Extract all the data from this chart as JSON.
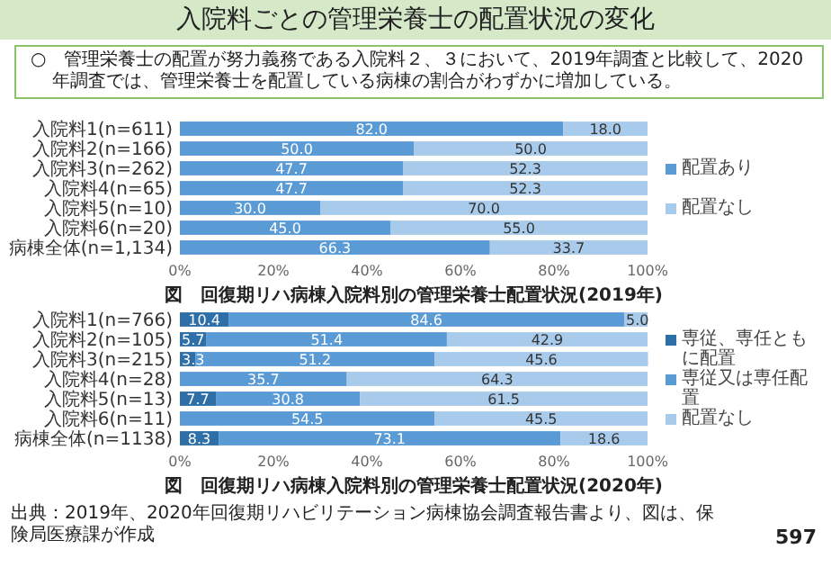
{
  "chart_data": [
    {
      "type": "other",
      "title": "入院料ごとの管理栄養士の配置状況の変化",
      "annotations": [
        "○　管理栄養士の配置が努力義務である入院料２、３において、2019年調査と比較して、2020年調査では、管理栄養士を配置している病棟の割合がわずかに増加している。"
      ]
    },
    {
      "type": "bar",
      "orientation": "horizontal",
      "stacked": true,
      "title": "図　回復期リハ病棟入院料別の管理栄養士配置状況(2019年)",
      "categories": [
        "入院料1(n=611)",
        "入院料2(n=166)",
        "入院料3(n=262)",
        "入院料4(n=65)",
        "入院料5(n=10)",
        "入院料6(n=20)",
        "病棟全体(n=1,134)"
      ],
      "series": [
        {
          "name": "配置あり",
          "color": "#5b9bd5",
          "values": [
            82.0,
            50.0,
            47.7,
            47.7,
            30.0,
            45.0,
            66.3
          ],
          "value_labels": [
            "82.0",
            "50.0",
            "47.7",
            "47.7",
            "30.0",
            "45.0",
            "66.3"
          ]
        },
        {
          "name": "配置なし",
          "color": "#a9cbeb",
          "values": [
            18.0,
            50.0,
            52.3,
            52.3,
            70.0,
            55.0,
            33.7
          ],
          "value_labels": [
            "18.0",
            "50.0",
            "52.3",
            "52.3",
            "70.0",
            "55.0",
            "33.7"
          ]
        }
      ],
      "xlim": [
        0,
        100
      ],
      "xticks": [
        {
          "value": 0,
          "label": "0%"
        },
        {
          "value": 20,
          "label": "20%"
        },
        {
          "value": 40,
          "label": "40%"
        },
        {
          "value": 60,
          "label": "60%"
        },
        {
          "value": 80,
          "label": "80%"
        },
        {
          "value": 100,
          "label": "100%"
        }
      ],
      "legend": "right"
    },
    {
      "type": "bar",
      "orientation": "horizontal",
      "stacked": true,
      "title": "図　回復期リハ病棟入院料別の管理栄養士配置状況(2020年)",
      "categories": [
        "入院料1(n=766)",
        "入院料2(n=105)",
        "入院料3(n=215)",
        "入院料4(n=28)",
        "入院料5(n=13)",
        "入院料6(n=11)",
        "病棟全体(n=1138)"
      ],
      "series": [
        {
          "name": "専従、専任ともに配置",
          "color": "#2f6fa8",
          "values": [
            10.4,
            5.7,
            3.3,
            null,
            7.7,
            null,
            8.3
          ],
          "value_labels": [
            "10.4",
            "5.7",
            "3.3",
            null,
            "7.7",
            null,
            "8.3"
          ]
        },
        {
          "name": "専従又は専任配置",
          "color": "#5b9bd5",
          "values": [
            84.6,
            51.4,
            51.2,
            35.7,
            30.8,
            54.5,
            73.1
          ],
          "value_labels": [
            "84.6",
            "51.4",
            "51.2",
            "35.7",
            "30.8",
            "54.5",
            "73.1"
          ]
        },
        {
          "name": "配置なし",
          "color": "#a9cbeb",
          "values": [
            5.0,
            42.9,
            45.6,
            64.3,
            61.5,
            45.5,
            18.6
          ],
          "value_labels": [
            "5.0",
            "42.9",
            "45.6",
            "64.3",
            "61.5",
            "45.5",
            "18.6"
          ]
        }
      ],
      "xlim": [
        0,
        100
      ],
      "xticks": [
        {
          "value": 0,
          "label": "0%"
        },
        {
          "value": 20,
          "label": "20%"
        },
        {
          "value": 40,
          "label": "40%"
        },
        {
          "value": 60,
          "label": "60%"
        },
        {
          "value": 80,
          "label": "80%"
        },
        {
          "value": 100,
          "label": "100%"
        }
      ],
      "legend": "right",
      "annotations": [
        "出典：2019年、2020年回復期リハビリテーション病棟協会調査報告書より、図は、保険局医療課が作成",
        "597"
      ]
    }
  ]
}
